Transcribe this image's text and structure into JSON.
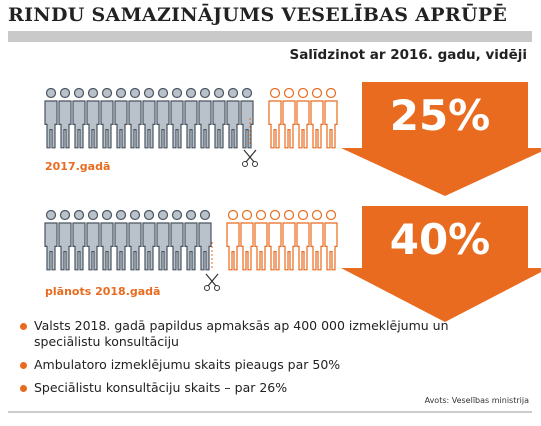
{
  "header": {
    "title": "RINDU SAMAZINĀJUMS VESELĪBAS APRŪPĒ",
    "subtitle": "Salīdzinot ar 2016. gadu, vidēji"
  },
  "rows": [
    {
      "label": "2017.gadā",
      "percent": "25%"
    },
    {
      "label": "plānots 2018.gadā",
      "percent": "40%"
    }
  ],
  "bullets": [
    "Valsts 2018. gadā papildus apmaksās ap 400 000 izmeklējumu un speciālistu konsultāciju",
    "Ambulatoro izmeklējumu skaits pieaugs par 50%",
    "Speciālistu konsultāciju skaits – par 26%"
  ],
  "source": "Avots: Veselības ministrija"
}
